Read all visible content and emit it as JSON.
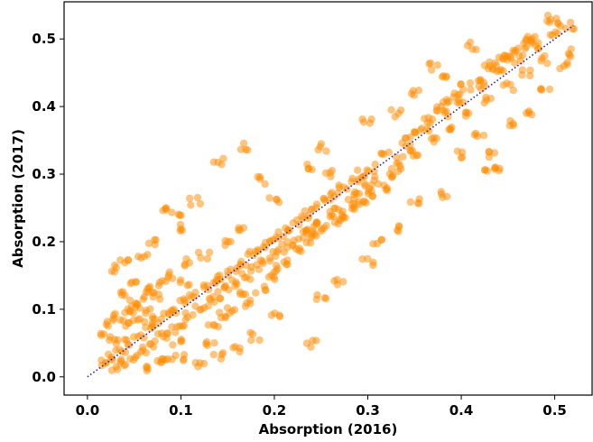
{
  "chart_data": {
    "type": "scatter",
    "title": "",
    "xlabel": "Absorption (2016)",
    "ylabel": "Absorption (2017)",
    "xlim": [
      -0.025,
      0.54
    ],
    "ylim": [
      -0.027,
      0.555
    ],
    "xticks": [
      0.0,
      0.1,
      0.2,
      0.3,
      0.4,
      0.5
    ],
    "xtick_labels": [
      "0.0",
      "0.1",
      "0.2",
      "0.3",
      "0.4",
      "0.5"
    ],
    "yticks": [
      0.0,
      0.1,
      0.2,
      0.3,
      0.4,
      0.5
    ],
    "ytick_labels": [
      "0.0",
      "0.1",
      "0.2",
      "0.3",
      "0.4",
      "0.5"
    ],
    "grid": false,
    "legend": "none",
    "series": [
      {
        "marker_color": "#ff8c00",
        "marker_alpha": 0.5,
        "points": [
          [
            0.02,
            0.02
          ],
          [
            0.025,
            0.03
          ],
          [
            0.03,
            0.015
          ],
          [
            0.035,
            0.04
          ],
          [
            0.04,
            0.02
          ],
          [
            0.045,
            0.05
          ],
          [
            0.05,
            0.03
          ],
          [
            0.055,
            0.06
          ],
          [
            0.06,
            0.04
          ],
          [
            0.065,
            0.07
          ],
          [
            0.07,
            0.05
          ],
          [
            0.075,
            0.08
          ],
          [
            0.08,
            0.06
          ],
          [
            0.085,
            0.09
          ],
          [
            0.09,
            0.07
          ],
          [
            0.095,
            0.1
          ],
          [
            0.1,
            0.08
          ],
          [
            0.105,
            0.11
          ],
          [
            0.11,
            0.09
          ],
          [
            0.115,
            0.12
          ],
          [
            0.12,
            0.1
          ],
          [
            0.125,
            0.13
          ],
          [
            0.13,
            0.11
          ],
          [
            0.135,
            0.14
          ],
          [
            0.14,
            0.12
          ],
          [
            0.145,
            0.15
          ],
          [
            0.15,
            0.13
          ],
          [
            0.155,
            0.16
          ],
          [
            0.16,
            0.14
          ],
          [
            0.165,
            0.17
          ],
          [
            0.17,
            0.15
          ],
          [
            0.175,
            0.18
          ],
          [
            0.18,
            0.16
          ],
          [
            0.185,
            0.19
          ],
          [
            0.19,
            0.17
          ],
          [
            0.195,
            0.2
          ],
          [
            0.2,
            0.18
          ],
          [
            0.205,
            0.21
          ],
          [
            0.21,
            0.19
          ],
          [
            0.215,
            0.22
          ],
          [
            0.22,
            0.2
          ],
          [
            0.225,
            0.23
          ],
          [
            0.23,
            0.21
          ],
          [
            0.235,
            0.24
          ],
          [
            0.24,
            0.22
          ],
          [
            0.245,
            0.25
          ],
          [
            0.25,
            0.23
          ],
          [
            0.255,
            0.26
          ],
          [
            0.26,
            0.24
          ],
          [
            0.265,
            0.27
          ],
          [
            0.27,
            0.25
          ],
          [
            0.275,
            0.28
          ],
          [
            0.28,
            0.26
          ],
          [
            0.285,
            0.29
          ],
          [
            0.29,
            0.27
          ],
          [
            0.295,
            0.3
          ],
          [
            0.3,
            0.28
          ],
          [
            0.305,
            0.31
          ],
          [
            0.31,
            0.29
          ],
          [
            0.32,
            0.33
          ],
          [
            0.33,
            0.31
          ],
          [
            0.34,
            0.35
          ],
          [
            0.35,
            0.33
          ],
          [
            0.36,
            0.37
          ],
          [
            0.37,
            0.35
          ],
          [
            0.38,
            0.39
          ],
          [
            0.39,
            0.37
          ],
          [
            0.4,
            0.41
          ],
          [
            0.41,
            0.39
          ],
          [
            0.42,
            0.43
          ],
          [
            0.43,
            0.41
          ],
          [
            0.44,
            0.45
          ],
          [
            0.45,
            0.43
          ],
          [
            0.46,
            0.47
          ],
          [
            0.47,
            0.45
          ],
          [
            0.48,
            0.49
          ],
          [
            0.49,
            0.47
          ],
          [
            0.5,
            0.51
          ],
          [
            0.505,
            0.525
          ],
          [
            0.515,
            0.52
          ],
          [
            0.03,
            0.16
          ],
          [
            0.04,
            0.17
          ],
          [
            0.05,
            0.135
          ],
          [
            0.06,
            0.18
          ],
          [
            0.07,
            0.2
          ],
          [
            0.08,
            0.25
          ],
          [
            0.095,
            0.24
          ],
          [
            0.1,
            0.22
          ],
          [
            0.115,
            0.26
          ],
          [
            0.14,
            0.32
          ],
          [
            0.15,
            0.2
          ],
          [
            0.165,
            0.22
          ],
          [
            0.17,
            0.34
          ],
          [
            0.185,
            0.29
          ],
          [
            0.2,
            0.26
          ],
          [
            0.24,
            0.31
          ],
          [
            0.25,
            0.34
          ],
          [
            0.26,
            0.3
          ],
          [
            0.3,
            0.38
          ],
          [
            0.33,
            0.39
          ],
          [
            0.35,
            0.42
          ],
          [
            0.37,
            0.46
          ],
          [
            0.38,
            0.44
          ],
          [
            0.41,
            0.49
          ],
          [
            0.45,
            0.47
          ],
          [
            0.48,
            0.5
          ],
          [
            0.49,
            0.53
          ],
          [
            0.2,
            0.09
          ],
          [
            0.18,
            0.06
          ],
          [
            0.16,
            0.04
          ],
          [
            0.14,
            0.03
          ],
          [
            0.12,
            0.02
          ],
          [
            0.24,
            0.05
          ],
          [
            0.25,
            0.12
          ],
          [
            0.27,
            0.14
          ],
          [
            0.3,
            0.17
          ],
          [
            0.31,
            0.2
          ],
          [
            0.33,
            0.22
          ],
          [
            0.35,
            0.26
          ],
          [
            0.38,
            0.27
          ],
          [
            0.4,
            0.33
          ],
          [
            0.42,
            0.36
          ],
          [
            0.43,
            0.31
          ],
          [
            0.44,
            0.305
          ],
          [
            0.45,
            0.375
          ],
          [
            0.47,
            0.39
          ],
          [
            0.49,
            0.43
          ],
          [
            0.51,
            0.46
          ],
          [
            0.515,
            0.48
          ],
          [
            0.43,
            0.33
          ],
          [
            0.06,
            0.015
          ],
          [
            0.08,
            0.02
          ],
          [
            0.1,
            0.03
          ],
          [
            0.05,
            0.1
          ],
          [
            0.035,
            0.12
          ],
          [
            0.025,
            0.08
          ],
          [
            0.02,
            0.06
          ],
          [
            0.09,
            0.15
          ],
          [
            0.11,
            0.17
          ],
          [
            0.13,
            0.05
          ],
          [
            0.075,
            0.12
          ],
          [
            0.085,
            0.03
          ],
          [
            0.095,
            0.05
          ],
          [
            0.105,
            0.14
          ],
          [
            0.125,
            0.18
          ],
          [
            0.135,
            0.08
          ],
          [
            0.145,
            0.09
          ],
          [
            0.155,
            0.1
          ],
          [
            0.165,
            0.12
          ],
          [
            0.175,
            0.11
          ],
          [
            0.185,
            0.13
          ],
          [
            0.195,
            0.15
          ],
          [
            0.205,
            0.16
          ],
          [
            0.215,
            0.17
          ],
          [
            0.225,
            0.19
          ],
          [
            0.235,
            0.2
          ],
          [
            0.245,
            0.21
          ],
          [
            0.255,
            0.22
          ],
          [
            0.265,
            0.23
          ],
          [
            0.275,
            0.24
          ],
          [
            0.285,
            0.25
          ],
          [
            0.295,
            0.26
          ],
          [
            0.305,
            0.27
          ],
          [
            0.315,
            0.28
          ],
          [
            0.325,
            0.3
          ],
          [
            0.335,
            0.32
          ],
          [
            0.345,
            0.34
          ],
          [
            0.355,
            0.36
          ],
          [
            0.365,
            0.38
          ],
          [
            0.375,
            0.4
          ],
          [
            0.385,
            0.41
          ],
          [
            0.395,
            0.42
          ],
          [
            0.405,
            0.43
          ],
          [
            0.415,
            0.44
          ],
          [
            0.425,
            0.46
          ],
          [
            0.435,
            0.46
          ],
          [
            0.445,
            0.47
          ],
          [
            0.455,
            0.48
          ],
          [
            0.465,
            0.49
          ],
          [
            0.475,
            0.5
          ],
          [
            0.05,
            0.11
          ],
          [
            0.06,
            0.12
          ],
          [
            0.07,
            0.13
          ],
          [
            0.08,
            0.14
          ],
          [
            0.03,
            0.09
          ],
          [
            0.04,
            0.08
          ],
          [
            0.045,
            0.1
          ],
          [
            0.055,
            0.085
          ],
          [
            0.065,
            0.095
          ],
          [
            0.028,
            0.05
          ]
        ]
      }
    ],
    "reference_line": {
      "x": [
        0.0,
        0.52
      ],
      "y": [
        0.0,
        0.52
      ],
      "style": "dotted",
      "color": "#2222aa"
    }
  }
}
